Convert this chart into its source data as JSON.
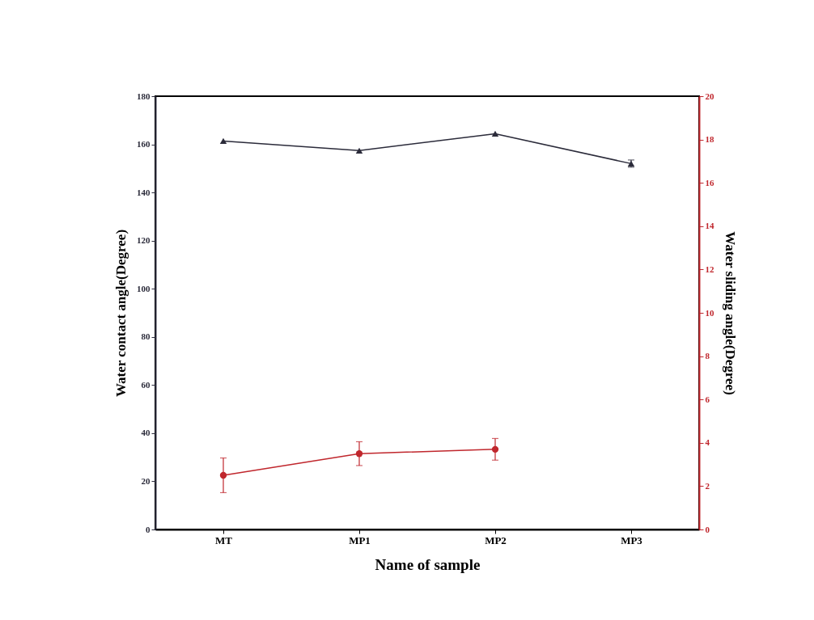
{
  "chart_data": {
    "type": "line",
    "categories": [
      "MT",
      "MP1",
      "MP2",
      "MP3"
    ],
    "xlabel": "Name of sample",
    "ylabel": "Water contact angle(Degree)",
    "y2label": "Water sliding angle(Degree)",
    "ylim": [
      0,
      180
    ],
    "yticks": [
      0,
      20,
      40,
      60,
      80,
      100,
      120,
      140,
      160,
      180
    ],
    "y2lim": [
      0,
      20
    ],
    "y2ticks": [
      0,
      2,
      4,
      6,
      8,
      10,
      12,
      14,
      16,
      18,
      20
    ],
    "series": [
      {
        "color": "#2b2b3a",
        "marker": "triangle",
        "values": [
          161.4,
          157.4,
          164.4,
          152
        ],
        "errors": [
          null,
          null,
          null,
          1.5
        ]
      },
      {
        "color": "#c0272d",
        "marker": "circle",
        "axis": "y2",
        "values": [
          2.5,
          3.5,
          3.7,
          null
        ],
        "errors": [
          0.8,
          0.55,
          0.5,
          null
        ]
      }
    ],
    "grid": false
  }
}
